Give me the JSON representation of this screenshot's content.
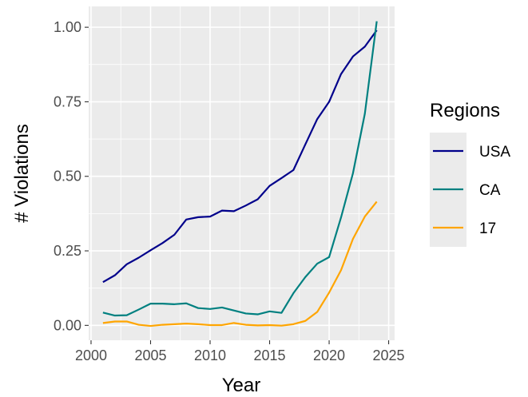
{
  "chart_data": {
    "type": "line",
    "title": "",
    "xlabel": "Year",
    "ylabel": "# Violations",
    "xlim": [
      1999.8,
      2025.5
    ],
    "ylim": [
      -0.05,
      1.07
    ],
    "x_ticks": [
      2000,
      2005,
      2010,
      2015,
      2020,
      2025
    ],
    "x_tick_labels": [
      "2000",
      "2005",
      "2010",
      "2015",
      "2020",
      "2025"
    ],
    "y_ticks": [
      0,
      0.25,
      0.5,
      0.75,
      1.0
    ],
    "y_tick_labels": [
      "0.00",
      "0.25",
      "0.50",
      "0.75",
      "1.00"
    ],
    "grid": true,
    "legend_title": "Regions",
    "legend_position": "right",
    "x": [
      2001,
      2002,
      2003,
      2004,
      2005,
      2006,
      2007,
      2008,
      2009,
      2010,
      2011,
      2012,
      2013,
      2014,
      2015,
      2016,
      2017,
      2018,
      2019,
      2020,
      2021,
      2022,
      2023,
      2024
    ],
    "series": [
      {
        "name": "USA",
        "color": "#00008B",
        "values": [
          0.145,
          0.168,
          0.205,
          0.227,
          0.252,
          0.276,
          0.304,
          0.355,
          0.363,
          0.365,
          0.385,
          0.383,
          0.402,
          0.423,
          0.468,
          0.494,
          0.521,
          0.607,
          0.692,
          0.75,
          0.843,
          0.902,
          0.935,
          0.99
        ]
      },
      {
        "name": "CA",
        "color": "#008080",
        "values": [
          0.043,
          0.033,
          0.034,
          0.053,
          0.073,
          0.073,
          0.071,
          0.074,
          0.058,
          0.055,
          0.06,
          0.05,
          0.04,
          0.037,
          0.047,
          0.042,
          0.108,
          0.162,
          0.207,
          0.229,
          0.362,
          0.51,
          0.71,
          1.02
        ]
      },
      {
        "name": "17",
        "color": "#FFA500",
        "values": [
          0.008,
          0.013,
          0.013,
          0.002,
          -0.002,
          0.002,
          0.004,
          0.006,
          0.004,
          0.001,
          0.001,
          0.008,
          0.002,
          0.0,
          0.001,
          -0.001,
          0.004,
          0.015,
          0.045,
          0.11,
          0.185,
          0.29,
          0.365,
          0.415
        ]
      }
    ]
  }
}
